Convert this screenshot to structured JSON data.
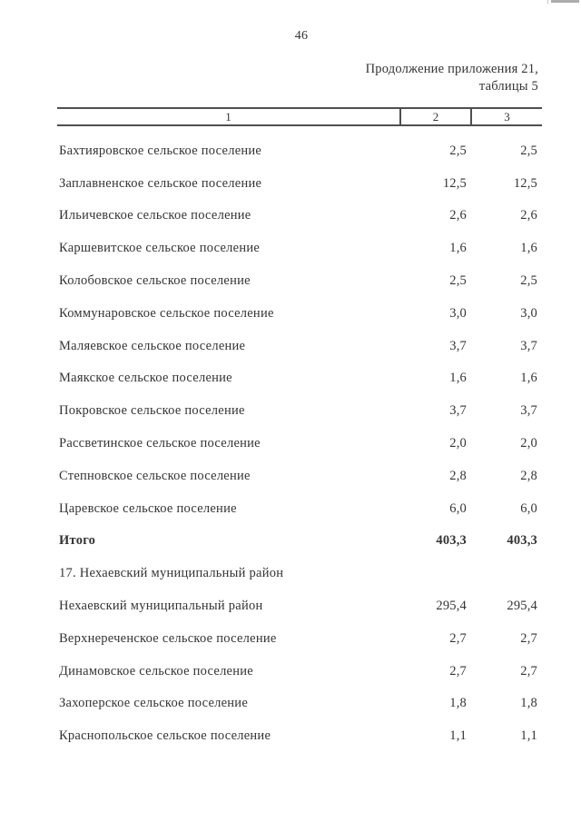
{
  "page": {
    "number": "46",
    "continuation_line1": "Продолжение приложения 21,",
    "continuation_line2": "таблицы 5"
  },
  "table": {
    "header": {
      "col1": "1",
      "col2": "2",
      "col3": "3"
    },
    "rows": [
      {
        "name": "Бахтияровское сельское поселение",
        "v2": "2,5",
        "v3": "2,5",
        "bold": false
      },
      {
        "name": "Заплавненское сельское поселение",
        "v2": "12,5",
        "v3": "12,5",
        "bold": false
      },
      {
        "name": "Ильичевское сельское поселение",
        "v2": "2,6",
        "v3": "2,6",
        "bold": false
      },
      {
        "name": "Каршевитское сельское поселение",
        "v2": "1,6",
        "v3": "1,6",
        "bold": false
      },
      {
        "name": "Колобовское сельское поселение",
        "v2": "2,5",
        "v3": "2,5",
        "bold": false
      },
      {
        "name": "Коммунаровское сельское поселение",
        "v2": "3,0",
        "v3": "3,0",
        "bold": false
      },
      {
        "name": "Маляевское сельское поселение",
        "v2": "3,7",
        "v3": "3,7",
        "bold": false
      },
      {
        "name": "Маякское сельское поселение",
        "v2": "1,6",
        "v3": "1,6",
        "bold": false
      },
      {
        "name": "Покровское сельское поселение",
        "v2": "3,7",
        "v3": "3,7",
        "bold": false
      },
      {
        "name": "Рассветинское сельское поселение",
        "v2": "2,0",
        "v3": "2,0",
        "bold": false
      },
      {
        "name": "Степновское сельское поселение",
        "v2": "2,8",
        "v3": "2,8",
        "bold": false
      },
      {
        "name": "Царевское сельское поселение",
        "v2": "6,0",
        "v3": "6,0",
        "bold": false
      },
      {
        "name": "Итого",
        "v2": "403,3",
        "v3": "403,3",
        "bold": true
      },
      {
        "name": "17. Нехаевский муниципальный район",
        "v2": "",
        "v3": "",
        "bold": false
      },
      {
        "name": "Нехаевский муниципальный район",
        "v2": "295,4",
        "v3": "295,4",
        "bold": false
      },
      {
        "name": "Верхнереченское сельское поселение",
        "v2": "2,7",
        "v3": "2,7",
        "bold": false
      },
      {
        "name": "Динамовское сельское поселение",
        "v2": "2,7",
        "v3": "2,7",
        "bold": false
      },
      {
        "name": "Захоперское сельское поселение",
        "v2": "1,8",
        "v3": "1,8",
        "bold": false
      },
      {
        "name": "Краснопольское сельское поселение",
        "v2": "1,1",
        "v3": "1,1",
        "bold": false
      }
    ]
  },
  "colors": {
    "ink": "#343434",
    "rule": "#4f4f4f",
    "background": "#ffffff"
  }
}
